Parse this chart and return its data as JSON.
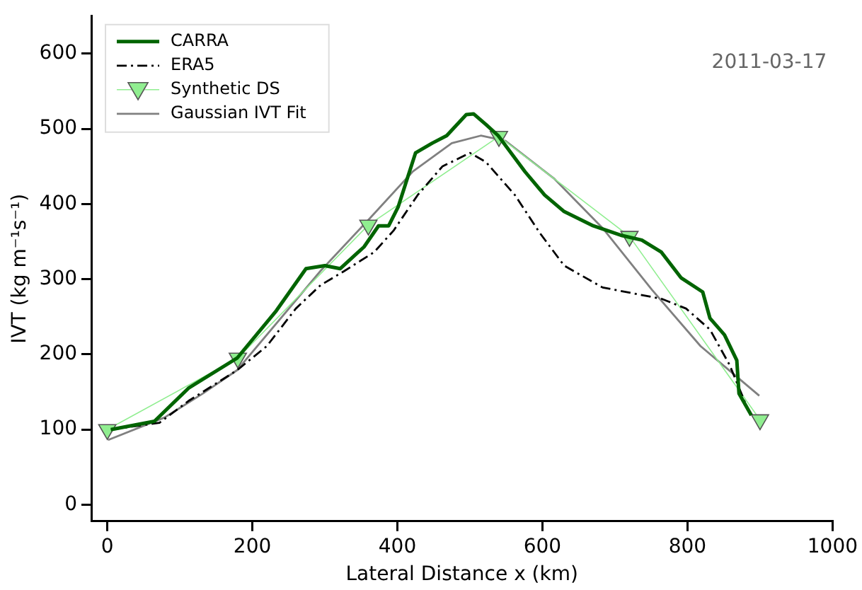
{
  "chart_data": {
    "type": "line",
    "xlabel": "Lateral Distance x (km)",
    "ylabel": "IVT (kg m⁻¹s⁻¹)",
    "xlim": [
      -22,
      1000
    ],
    "xticks": [
      0,
      200,
      400,
      600,
      800,
      1000
    ],
    "ylim": [
      -22,
      650
    ],
    "yticks": [
      0,
      100,
      200,
      300,
      400,
      500,
      600
    ],
    "grid": false,
    "legend": "top left",
    "annotations": [
      "2011-03-17"
    ],
    "series": [
      {
        "name": "CARRA",
        "color": "#006400",
        "marker": "none",
        "line_style": "solid",
        "x": [
          5,
          65,
          112,
          179,
          233,
          274,
          300,
          321,
          354,
          374,
          388,
          401,
          425,
          448,
          468,
          495,
          505,
          522,
          539,
          576,
          603,
          630,
          670,
          710,
          737,
          764,
          791,
          821,
          831,
          851,
          868,
          871,
          888
        ],
        "values": [
          100,
          111,
          155,
          195,
          258,
          314,
          318,
          314,
          343,
          371,
          371,
          396,
          468,
          481,
          491,
          519,
          520,
          506,
          491,
          443,
          412,
          390,
          371,
          358,
          352,
          336,
          302,
          283,
          248,
          226,
          192,
          148,
          119
        ]
      },
      {
        "name": "ERA5",
        "color": "#000000",
        "marker": "none",
        "line_style": "dashed",
        "x": [
          5,
          72,
          112,
          179,
          220,
          260,
          294,
          327,
          368,
          395,
          428,
          462,
          500,
          522,
          562,
          596,
          630,
          683,
          764,
          798,
          831,
          858,
          885
        ],
        "values": [
          100,
          109,
          138,
          179,
          211,
          261,
          292,
          311,
          336,
          365,
          412,
          450,
          468,
          456,
          412,
          362,
          318,
          289,
          274,
          261,
          233,
          186,
          123
        ]
      },
      {
        "name": "Synthetic DS",
        "color": "#90ee90",
        "marker": "triangle",
        "line_style": "solid",
        "x": [
          0,
          180,
          360,
          540,
          720,
          900
        ],
        "values": [
          100,
          195,
          372,
          490,
          357,
          113
        ]
      },
      {
        "name": "Gaussian IVT Fit",
        "color": "#808080",
        "marker": "none",
        "line_style": "solid",
        "x": [
          1,
          79,
          132,
          179,
          294,
          361,
          421,
          475,
          515,
          549,
          616,
          683,
          751,
          818,
          899
        ],
        "values": [
          86,
          116,
          148,
          179,
          311,
          380,
          443,
          481,
          491,
          484,
          434,
          368,
          286,
          211,
          145
        ]
      }
    ]
  }
}
